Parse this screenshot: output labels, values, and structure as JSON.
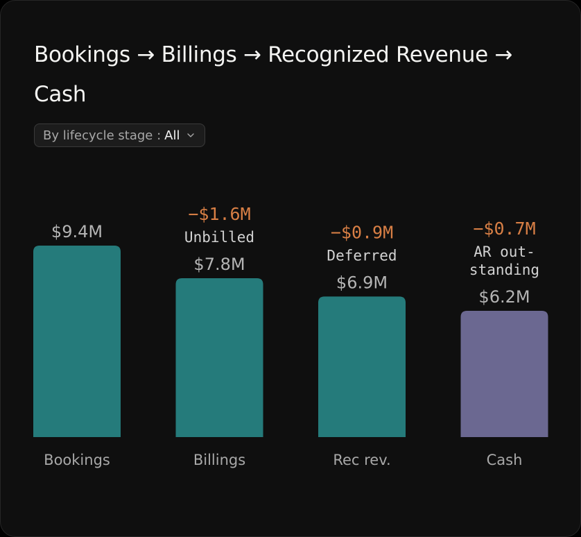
{
  "title": "Bookings → Billings → Recognized Revenue → Cash",
  "filter": {
    "label": "By lifecycle stage :",
    "value": "All",
    "icon": "chevron-down-icon"
  },
  "colors": {
    "teal": "#257b7b",
    "purple": "#6b6891",
    "delta": "#d87f45",
    "value_label": "#b4b4b4",
    "note": "#d2d2d2",
    "category_label": "#a8a8a8"
  },
  "chart_data": {
    "type": "bar",
    "categories": [
      "Bookings",
      "Billings",
      "Rec rev.",
      "Cash"
    ],
    "values": [
      9.4,
      7.8,
      6.9,
      6.2
    ],
    "value_labels": [
      "$9.4M",
      "$7.8M",
      "$6.9M",
      "$6.2M"
    ],
    "bar_colors": [
      "#257b7b",
      "#257b7b",
      "#257b7b",
      "#6b6891"
    ],
    "annotations": [
      null,
      {
        "delta": "−$1.6M",
        "note": [
          "Unbilled"
        ]
      },
      {
        "delta": "−$0.9M",
        "note": [
          "Deferred"
        ]
      },
      {
        "delta": "−$0.7M",
        "note": [
          "AR out-",
          "standing"
        ]
      }
    ],
    "title": "Bookings → Billings → Recognized Revenue → Cash",
    "xlabel": "",
    "ylabel": "",
    "ylim": [
      0,
      9.4
    ],
    "grid": false
  }
}
